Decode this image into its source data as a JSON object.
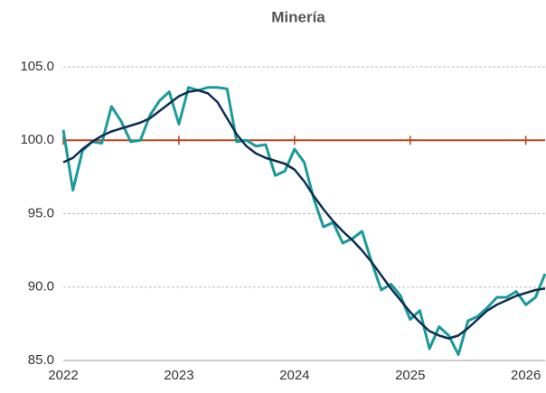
{
  "chart_data": {
    "type": "line",
    "title": "Minería",
    "categories": [
      "2022",
      null,
      null,
      null,
      null,
      null,
      null,
      null,
      null,
      null,
      null,
      null,
      "2023",
      null,
      null,
      null,
      null,
      null,
      null,
      null,
      null,
      null,
      null,
      null,
      "2024",
      null,
      null,
      null,
      null,
      null,
      null,
      null,
      null,
      null,
      null,
      null,
      "2025",
      null,
      null,
      null,
      null,
      null,
      null,
      null,
      null,
      null,
      null,
      null,
      "2026",
      null,
      null
    ],
    "series": [
      {
        "color": "#1a9a9a",
        "values": [
          100.7,
          96.6,
          99.3,
          99.9,
          99.8,
          102.3,
          101.3,
          99.9,
          100.0,
          101.7,
          102.7,
          103.3,
          101.1,
          103.6,
          103.4,
          103.6,
          103.6,
          103.5,
          99.9,
          100.0,
          99.6,
          99.7,
          97.6,
          97.9,
          99.4,
          98.5,
          96.0,
          94.1,
          94.4,
          93.0,
          93.3,
          93.8,
          91.7,
          89.8,
          90.2,
          89.4,
          87.8,
          88.4,
          85.8,
          87.3,
          86.7,
          85.4,
          87.7,
          88.0,
          88.6,
          89.3,
          89.3,
          89.7,
          88.8,
          89.3,
          90.9
        ]
      },
      {
        "color": "#0d2d52",
        "values": [
          98.5,
          98.8,
          99.4,
          99.9,
          100.3,
          100.6,
          100.8,
          101.0,
          101.2,
          101.5,
          102.0,
          102.5,
          103.0,
          103.3,
          103.4,
          103.2,
          102.6,
          101.5,
          100.4,
          99.6,
          99.1,
          98.8,
          98.6,
          98.4,
          98.0,
          97.2,
          96.2,
          95.3,
          94.5,
          93.8,
          93.2,
          92.5,
          91.7,
          90.8,
          89.9,
          89.1,
          88.3,
          87.6,
          87.0,
          86.7,
          86.5,
          86.7,
          87.2,
          87.8,
          88.4,
          88.8,
          89.1,
          89.4,
          89.6,
          89.8,
          89.9
        ]
      }
    ],
    "ylim": [
      85,
      106
    ],
    "yticks": [
      {
        "value": 85,
        "label": "85.0"
      },
      {
        "value": 90,
        "label": "90.0"
      },
      {
        "value": 95,
        "label": "95.0"
      },
      {
        "value": 100,
        "label": "100.0"
      },
      {
        "value": 105,
        "label": "105.0"
      }
    ],
    "grid": true,
    "reference_line": 100,
    "reference_color": "#c0401f"
  }
}
